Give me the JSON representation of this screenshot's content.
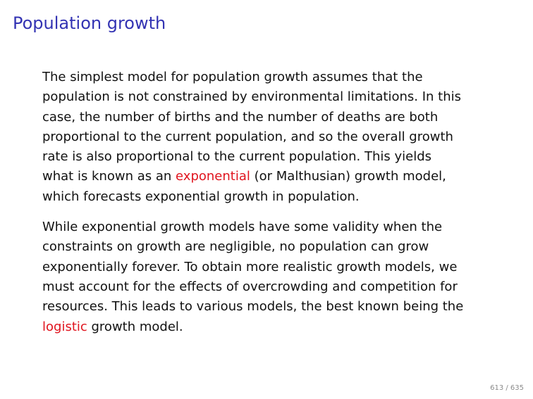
{
  "slide": {
    "title": "Population growth"
  },
  "paragraphs": [
    {
      "lines": [
        [
          {
            "text": "The simplest model for population growth assumes that the"
          }
        ],
        [
          {
            "text": "population is not constrained by environmental limitations.  In this"
          }
        ],
        [
          {
            "text": "case, the number of births and the number of deaths are both"
          }
        ],
        [
          {
            "text": "proportional to the current population, and so the overall growth"
          }
        ],
        [
          {
            "text": "rate is also proportional to the current population.  This yields"
          }
        ],
        [
          {
            "text": "what is known as an "
          },
          {
            "text": "exponential",
            "emphasis": true
          },
          {
            "text": " (or Malthusian) growth model,"
          }
        ],
        [
          {
            "text": "which forecasts exponential growth in population."
          }
        ]
      ]
    },
    {
      "lines": [
        [
          {
            "text": "While exponential growth models have some validity when the"
          }
        ],
        [
          {
            "text": "constraints on growth are negligible, no population can grow"
          }
        ],
        [
          {
            "text": "exponentially forever.  To obtain more realistic growth models, we"
          }
        ],
        [
          {
            "text": "must account for the effects of overcrowding and competition for"
          }
        ],
        [
          {
            "text": "resources.  This leads to various models, the best known being the"
          }
        ],
        [
          {
            "text": "logistic",
            "emphasis": true
          },
          {
            "text": " growth model."
          }
        ]
      ]
    }
  ],
  "footer": {
    "page_number": "613 / 635"
  },
  "colors": {
    "title": "#3333b3",
    "emphasis": "#e0141e",
    "body_text": "#111111",
    "page_number": "#8a8a8a"
  }
}
